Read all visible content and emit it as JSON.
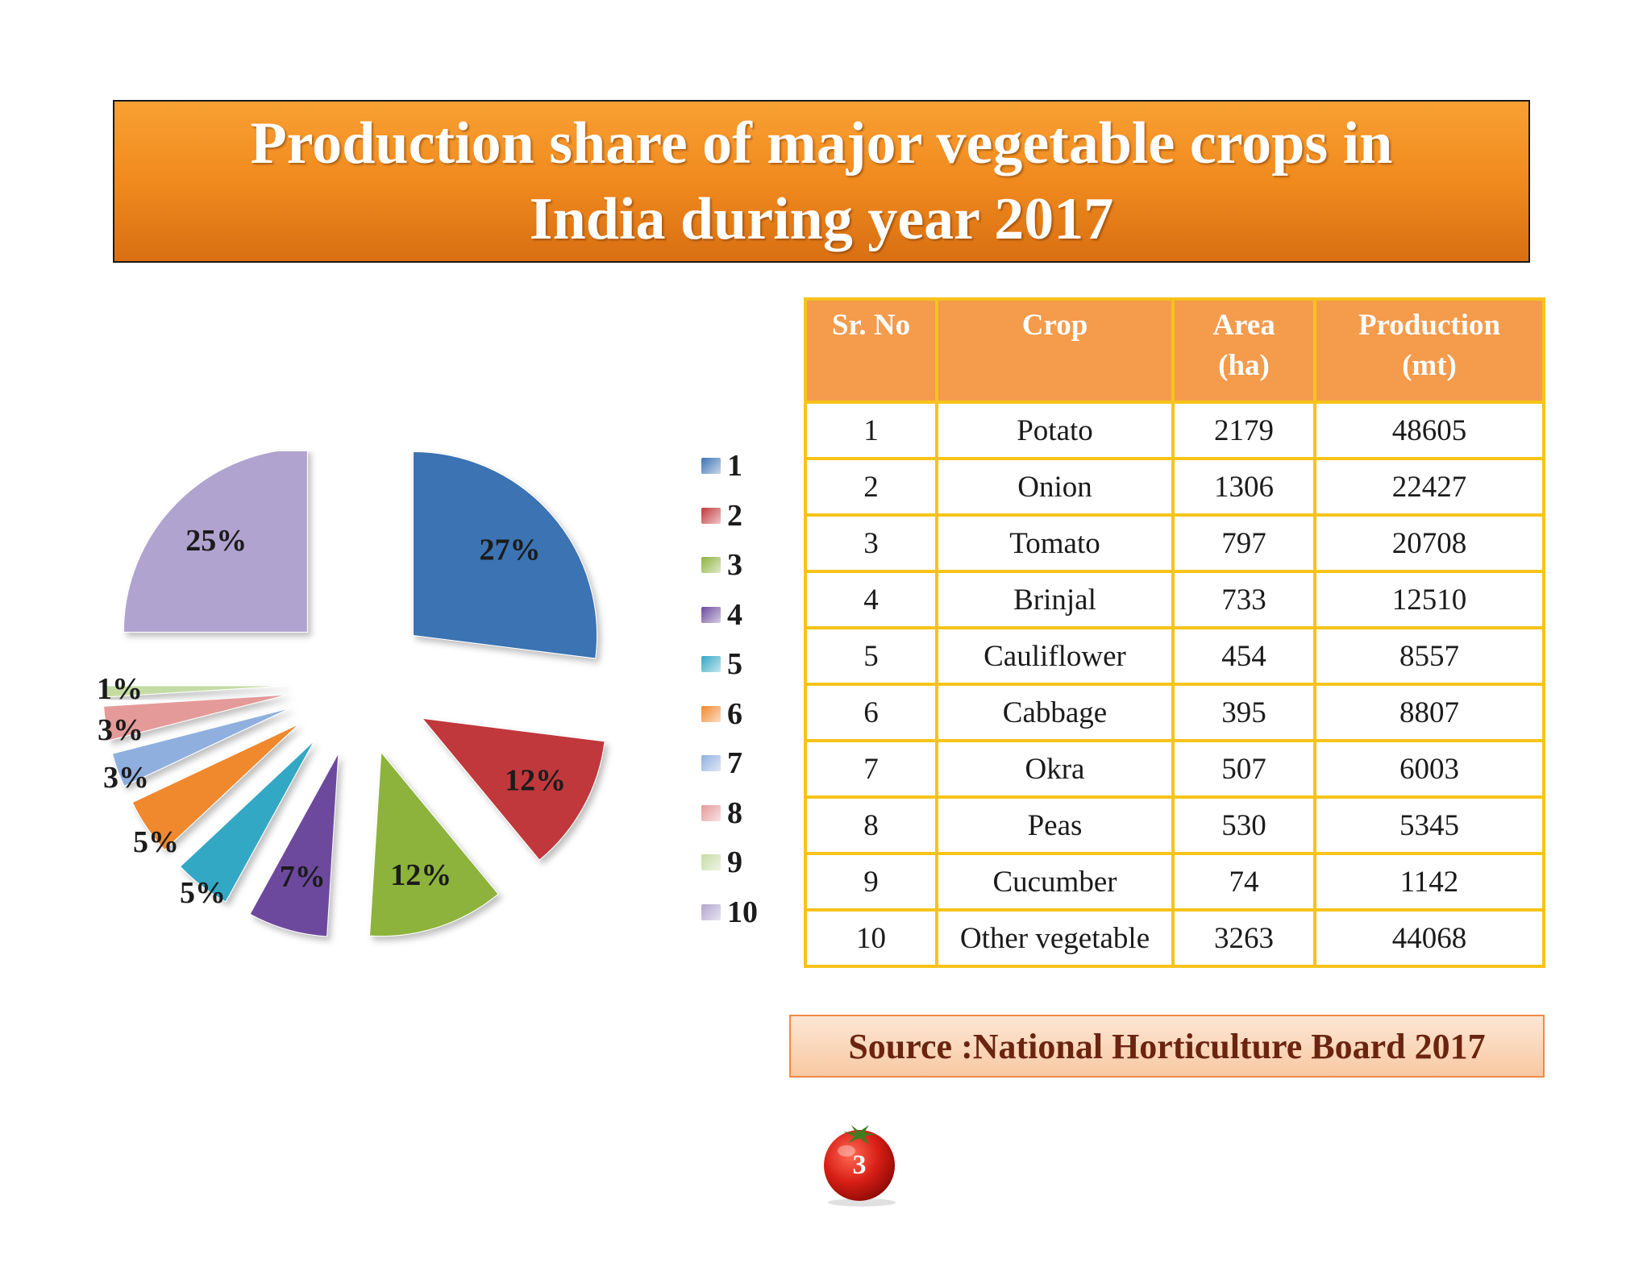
{
  "title": {
    "line1": "Production share of major vegetable crops in",
    "line2": "India during year 2017"
  },
  "chart_data": {
    "type": "pie",
    "categories": [
      "1",
      "2",
      "3",
      "4",
      "5",
      "6",
      "7",
      "8",
      "9",
      "10"
    ],
    "values": [
      27,
      12,
      12,
      7,
      5,
      5,
      3,
      3,
      1,
      25
    ],
    "labels": [
      "27%",
      "12%",
      "12%",
      "7%",
      "5%",
      "5%",
      "3%",
      "3%",
      "1%",
      "25%"
    ],
    "colors": [
      "#3b73b3",
      "#c0393b",
      "#8db33e",
      "#6d4a9e",
      "#33a8c4",
      "#f0882e",
      "#8fb0df",
      "#e59a9a",
      "#c4dca3",
      "#b1a3cf"
    ],
    "legend_position": "right"
  },
  "table": {
    "headers": [
      {
        "line1": "Sr.  No",
        "line2": ""
      },
      {
        "line1": "Crop",
        "line2": ""
      },
      {
        "line1": "Area",
        "line2": "(ha)"
      },
      {
        "line1": "Production",
        "line2": "(mt)"
      }
    ],
    "rows": [
      {
        "sr": "1",
        "crop": "Potato",
        "area": "2179",
        "production": "48605"
      },
      {
        "sr": "2",
        "crop": "Onion",
        "area": "1306",
        "production": "22427"
      },
      {
        "sr": "3",
        "crop": "Tomato",
        "area": "797",
        "production": "20708"
      },
      {
        "sr": "4",
        "crop": "Brinjal",
        "area": "733",
        "production": "12510"
      },
      {
        "sr": "5",
        "crop": "Cauliflower",
        "area": "454",
        "production": "8557"
      },
      {
        "sr": "6",
        "crop": "Cabbage",
        "area": "395",
        "production": "8807"
      },
      {
        "sr": "7",
        "crop": "Okra",
        "area": "507",
        "production": "6003"
      },
      {
        "sr": "8",
        "crop": "Peas",
        "area": "530",
        "production": "5345"
      },
      {
        "sr": "9",
        "crop": "Cucumber",
        "area": "74",
        "production": "1142"
      },
      {
        "sr": "10",
        "crop": "Other vegetable",
        "area": "3263",
        "production": "44068"
      }
    ]
  },
  "source": "Source :National Horticulture Board 2017",
  "page_number": "3",
  "colors": {
    "title_orange": "#f08a1e",
    "table_header": "#f49b4c",
    "table_border": "#f6c31b",
    "source_text": "#6b2410"
  }
}
